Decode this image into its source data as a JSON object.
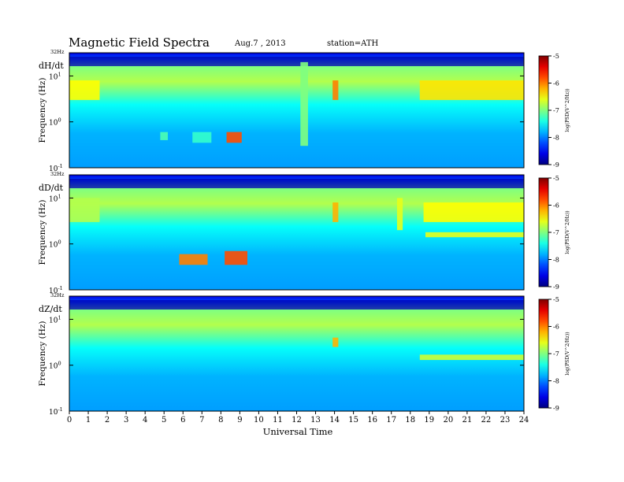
{
  "header": {
    "title": "Magnetic  Field  Spectra",
    "date": "Aug.7  , 2013",
    "station": "station=ATH"
  },
  "chart_data": {
    "type": "heatmap",
    "xlabel": "Universal  Time",
    "x_ticks": [
      "0",
      "1",
      "2",
      "3",
      "4",
      "5",
      "6",
      "7",
      "8",
      "9",
      "10",
      "11",
      "12",
      "13",
      "14",
      "15",
      "16",
      "17",
      "18",
      "19",
      "20",
      "21",
      "22",
      "23",
      "24"
    ],
    "xlim": [
      0,
      24
    ],
    "ylabel": "Frequency  (Hz)",
    "y_scale": "log",
    "ylim": [
      0.1,
      32
    ],
    "top_label": "32Hz",
    "y_ticks": [
      {
        "base": "10",
        "exp": "-1",
        "value": 0.1
      },
      {
        "base": "10",
        "exp": "0",
        "value": 1
      },
      {
        "base": "10",
        "exp": "1",
        "value": 10
      }
    ],
    "colorbar": {
      "label": "log(PSD(V^2/Hz))",
      "ticks": [
        "-5",
        "-6",
        "-7",
        "-8",
        "-9"
      ],
      "range": [
        -9,
        -5
      ]
    },
    "panels": [
      {
        "name": "dH/dt",
        "events": [
          {
            "t": [
              0.0,
              1.6
            ],
            "f": [
              3.0,
              8.0
            ],
            "level": -6.5
          },
          {
            "t": [
              4.8,
              5.2
            ],
            "f": [
              0.4,
              0.6
            ],
            "level": -7.2
          },
          {
            "t": [
              6.5,
              7.5
            ],
            "f": [
              0.35,
              0.6
            ],
            "level": -7.3
          },
          {
            "t": [
              8.3,
              9.1
            ],
            "f": [
              0.35,
              0.6
            ],
            "level": -5.8
          },
          {
            "t": [
              12.2,
              12.6
            ],
            "f": [
              0.3,
              20.0
            ],
            "level": -7.0
          },
          {
            "t": [
              13.9,
              14.2
            ],
            "f": [
              3.0,
              8.0
            ],
            "level": -6.0
          },
          {
            "t": [
              18.5,
              24.0
            ],
            "f": [
              3.0,
              8.0
            ],
            "level": -6.4
          }
        ]
      },
      {
        "name": "dD/dt",
        "events": [
          {
            "t": [
              0.0,
              1.6
            ],
            "f": [
              3.0,
              10.0
            ],
            "level": -6.8
          },
          {
            "t": [
              5.8,
              7.3
            ],
            "f": [
              0.35,
              0.6
            ],
            "level": -6.0
          },
          {
            "t": [
              8.2,
              9.4
            ],
            "f": [
              0.35,
              0.7
            ],
            "level": -5.8
          },
          {
            "t": [
              13.9,
              14.2
            ],
            "f": [
              3.0,
              8.0
            ],
            "level": -6.2
          },
          {
            "t": [
              17.3,
              17.6
            ],
            "f": [
              2.0,
              10.0
            ],
            "level": -6.6
          },
          {
            "t": [
              18.7,
              24.0
            ],
            "f": [
              3.0,
              8.0
            ],
            "level": -6.5
          },
          {
            "t": [
              18.8,
              24.0
            ],
            "f": [
              1.4,
              1.8
            ],
            "level": -6.6
          }
        ]
      },
      {
        "name": "dZ/dt",
        "events": [
          {
            "t": [
              13.9,
              14.2
            ],
            "f": [
              2.5,
              4.0
            ],
            "level": -6.2
          },
          {
            "t": [
              18.5,
              24.0
            ],
            "f": [
              1.3,
              1.7
            ],
            "level": -6.7
          }
        ]
      }
    ]
  }
}
